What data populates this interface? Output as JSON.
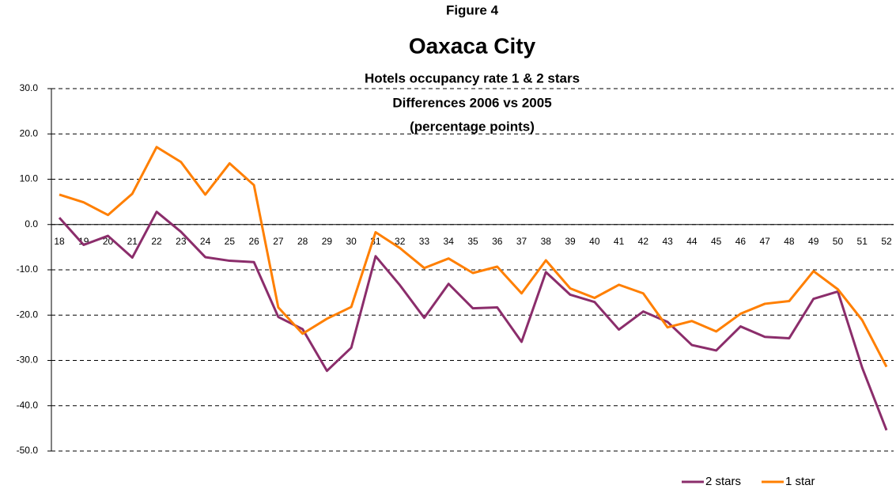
{
  "chart_data": {
    "type": "line",
    "title": "Figure 4",
    "subtitle": "Oaxaca City",
    "annotations": [
      "Hotels occupancy rate 1 & 2 stars",
      "Differences 2006 vs 2005",
      "(percentage points)"
    ],
    "categories": [
      "18",
      "19",
      "20",
      "21",
      "22",
      "23",
      "24",
      "25",
      "26",
      "27",
      "28",
      "29",
      "30",
      "31",
      "32",
      "33",
      "34",
      "35",
      "36",
      "37",
      "38",
      "39",
      "40",
      "41",
      "42",
      "43",
      "44",
      "45",
      "46",
      "47",
      "48",
      "49",
      "50",
      "51",
      "52"
    ],
    "series": [
      {
        "name": "2 stars",
        "color": "#8b2d6b",
        "values": [
          1.5,
          -4.5,
          -2.5,
          -7.3,
          2.8,
          -1.6,
          -7.2,
          -8.0,
          -8.3,
          -20.4,
          -23.1,
          -32.3,
          -27.2,
          -7.0,
          -13.4,
          -20.6,
          -13.1,
          -18.5,
          -18.3,
          -25.9,
          -10.5,
          -15.5,
          -17.1,
          -23.2,
          -19.2,
          -21.5,
          -26.6,
          -27.8,
          -22.5,
          -24.8,
          -25.1,
          -16.4,
          -14.8,
          -31.6,
          -45.4
        ]
      },
      {
        "name": "1 star",
        "color": "#ff7f00",
        "values": [
          6.6,
          4.9,
          2.1,
          6.8,
          17.1,
          13.8,
          6.6,
          13.5,
          8.7,
          -18.3,
          -24.1,
          -20.8,
          -18.2,
          -1.7,
          -5.2,
          -9.6,
          -7.5,
          -10.7,
          -9.3,
          -15.2,
          -7.9,
          -14.1,
          -16.2,
          -13.3,
          -15.2,
          -22.7,
          -21.3,
          -23.6,
          -19.7,
          -17.5,
          -16.9,
          -10.3,
          -14.3,
          -21.1,
          -31.4
        ]
      }
    ],
    "ylim": [
      -50,
      30
    ],
    "yticks": [
      {
        "value": -50,
        "label": "-50.0"
      },
      {
        "value": -40,
        "label": "-40.0"
      },
      {
        "value": -30,
        "label": "-30.0"
      },
      {
        "value": -20,
        "label": "-20.0"
      },
      {
        "value": -10,
        "label": "-10.0"
      },
      {
        "value": 0,
        "label": "0.0"
      },
      {
        "value": 10,
        "label": "10.0"
      },
      {
        "value": 20,
        "label": "20.0"
      },
      {
        "value": 30,
        "label": "30.0"
      }
    ],
    "grid": true,
    "legend": "bottom-right"
  }
}
